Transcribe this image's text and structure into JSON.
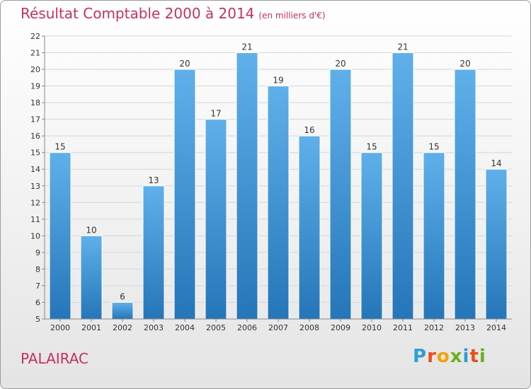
{
  "title": "Résultat Comptable 2000 à 2014",
  "subtitle": "(en milliers d'€)",
  "commune": "PALAIRAC",
  "logo": {
    "letters": [
      "P",
      "r",
      "o",
      "x",
      "i",
      "t",
      "i"
    ],
    "colors": [
      "#2a9fd6",
      "#e94e1b",
      "#f5a000",
      "#6ab023",
      "#2a9fd6",
      "#e94e1b",
      "#6ab023"
    ]
  },
  "colors": {
    "bar_top": "#5fb0ea",
    "bar_bottom": "#2576b9",
    "title": "#c0335d"
  },
  "chart_data": {
    "type": "bar",
    "title": "Résultat Comptable 2000 à 2014",
    "xlabel": "",
    "ylabel": "(en milliers d'€)",
    "categories": [
      "2000",
      "2001",
      "2002",
      "2003",
      "2004",
      "2005",
      "2006",
      "2007",
      "2008",
      "2009",
      "2010",
      "2011",
      "2012",
      "2013",
      "2014"
    ],
    "values": [
      15,
      10,
      6,
      13,
      20,
      17,
      21,
      19,
      16,
      20,
      15,
      21,
      15,
      20,
      14
    ],
    "ylim": [
      5,
      22
    ],
    "yticks": [
      5,
      6,
      7,
      8,
      9,
      10,
      11,
      12,
      13,
      14,
      15,
      16,
      17,
      18,
      19,
      20,
      21,
      22
    ],
    "grid": true,
    "legend": "none"
  }
}
